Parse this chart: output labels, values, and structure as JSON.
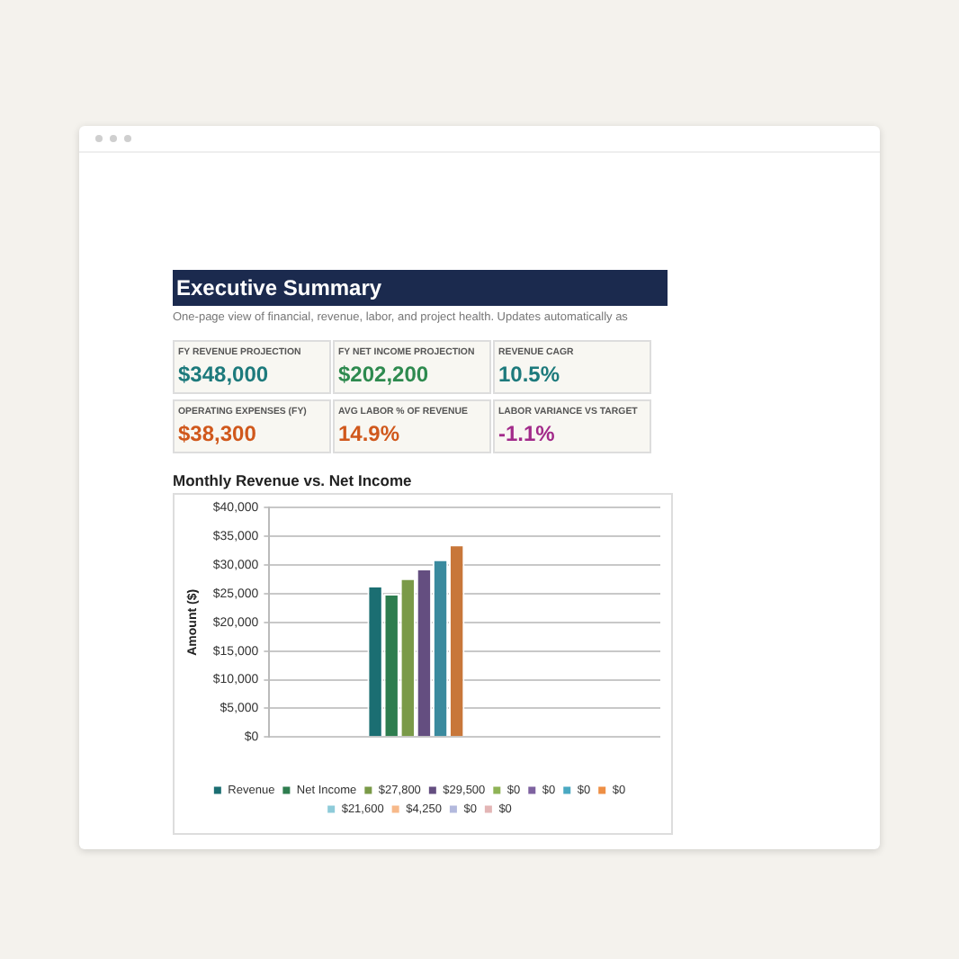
{
  "chart_data": [
    {
      "type": "other",
      "title": "Executive Summary",
      "subtitle": "One-page view of financial, revenue, labor, and project health. Updates automatically as",
      "annotations": [
        "FY REVENUE PROJECTION",
        "$348,000",
        "FY NET INCOME PROJECTION",
        "$202,200",
        "REVENUE CAGR",
        "10.5%",
        "OPERATING EXPENSES (FY)",
        "$38,300",
        "AVG LABOR % OF REVENUE",
        "14.9%",
        "LABOR VARIANCE VS TARGET",
        "-1.1%"
      ]
    },
    {
      "type": "bar",
      "title": "Monthly Revenue vs. Net Income",
      "ylabel": "Amount ($)",
      "categories": [
        null
      ],
      "series": [
        {
          "name": "Revenue",
          "color": "#1b6e72",
          "values": [
            26400
          ]
        },
        {
          "name": "Net Income",
          "color": "#2e7d4f",
          "values": [
            25000
          ]
        },
        {
          "name": "$27,800",
          "color": "#7a9a48",
          "values": [
            27700
          ]
        },
        {
          "name": "$29,500",
          "color": "#644e80",
          "values": [
            29400
          ]
        },
        {
          "color": "#3a8a9e",
          "values": [
            31000
          ]
        },
        {
          "color": "#c8773a",
          "values": [
            33600
          ]
        },
        {
          "name": "$0",
          "color": "#8fb356",
          "values": [
            null
          ]
        },
        {
          "name": "$0",
          "color": "#7e62a0",
          "values": [
            null
          ]
        },
        {
          "name": "$0",
          "color": "#4aa9c2",
          "values": [
            null
          ]
        },
        {
          "name": "$0",
          "color": "#ee8f45",
          "values": [
            null
          ]
        },
        {
          "name": "$21,600",
          "color": "#8ecbd9",
          "values": [
            null
          ]
        },
        {
          "name": "$4,250",
          "color": "#f7b98a",
          "values": [
            null
          ]
        },
        {
          "name": "$0",
          "color": "#b3b9dd",
          "values": [
            null
          ]
        },
        {
          "name": "$0",
          "color": "#e3b5b5",
          "values": [
            null
          ]
        }
      ],
      "ylim": [
        0,
        40000
      ],
      "yticks": [
        {
          "value": 0,
          "label": "$0"
        },
        {
          "value": 5000,
          "label": "$5,000"
        },
        {
          "value": 10000,
          "label": "$10,000"
        },
        {
          "value": 15000,
          "label": "$15,000"
        },
        {
          "value": 20000,
          "label": "$20,000"
        },
        {
          "value": 25000,
          "label": "$25,000"
        },
        {
          "value": 30000,
          "label": "$30,000"
        },
        {
          "value": 35000,
          "label": "$35,000"
        },
        {
          "value": 40000,
          "label": "$40,000"
        }
      ],
      "grid": "y",
      "legend": "bottom"
    }
  ]
}
